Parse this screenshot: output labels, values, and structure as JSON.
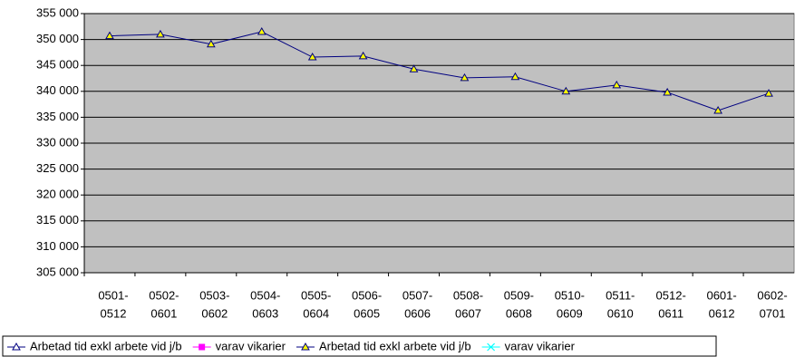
{
  "chart_data": {
    "type": "line",
    "categories": [
      [
        "0501-",
        "0512"
      ],
      [
        "0502-",
        "0601"
      ],
      [
        "0503-",
        "0602"
      ],
      [
        "0504-",
        "0603"
      ],
      [
        "0505-",
        "0604"
      ],
      [
        "0506-",
        "0605"
      ],
      [
        "0507-",
        "0606"
      ],
      [
        "0508-",
        "0607"
      ],
      [
        "0509-",
        "0608"
      ],
      [
        "0510-",
        "0609"
      ],
      [
        "0511-",
        "0610"
      ],
      [
        "0512-",
        "0611"
      ],
      [
        "0601-",
        "0612"
      ],
      [
        "0602-",
        "0701"
      ]
    ],
    "series": [
      {
        "name": "Arbetad tid exkl arbete vid j/b",
        "color": "#000080",
        "marker": "triangle",
        "marker_fill": "#ffffff",
        "values": [
          null,
          null,
          null,
          null,
          null,
          null,
          null,
          null,
          null,
          null,
          null,
          null,
          null,
          null
        ]
      },
      {
        "name": "varav vikarier",
        "color": "#ff00ff",
        "marker": "square",
        "marker_fill": "#ff00ff",
        "values": [
          null,
          null,
          null,
          null,
          null,
          null,
          null,
          null,
          null,
          null,
          null,
          null,
          null,
          null
        ]
      },
      {
        "name": "Arbetad tid exkl arbete vid j/b",
        "color": "#000080",
        "marker": "triangle",
        "marker_fill": "#ffff00",
        "values": [
          350700,
          351000,
          349100,
          351500,
          346600,
          346800,
          344300,
          342600,
          342800,
          340000,
          341200,
          339800,
          336300,
          339600
        ]
      },
      {
        "name": "varav vikarier",
        "color": "#00ffff",
        "marker": "x",
        "marker_fill": "#00ffff",
        "values": [
          null,
          null,
          null,
          null,
          null,
          null,
          null,
          null,
          null,
          null,
          null,
          null,
          null,
          null
        ]
      }
    ],
    "ylim": [
      305000,
      355000
    ],
    "yticks": [
      {
        "value": 305000,
        "label": "305 000"
      },
      {
        "value": 310000,
        "label": "310 000"
      },
      {
        "value": 315000,
        "label": "315 000"
      },
      {
        "value": 320000,
        "label": "320 000"
      },
      {
        "value": 325000,
        "label": "325 000"
      },
      {
        "value": 330000,
        "label": "330 000"
      },
      {
        "value": 335000,
        "label": "335 000"
      },
      {
        "value": 340000,
        "label": "340 000"
      },
      {
        "value": 345000,
        "label": "345 000"
      },
      {
        "value": 350000,
        "label": "350 000"
      },
      {
        "value": 355000,
        "label": "355 000"
      }
    ],
    "grid": true,
    "plot_background": "#c0c0c0",
    "legend": "bottom"
  }
}
